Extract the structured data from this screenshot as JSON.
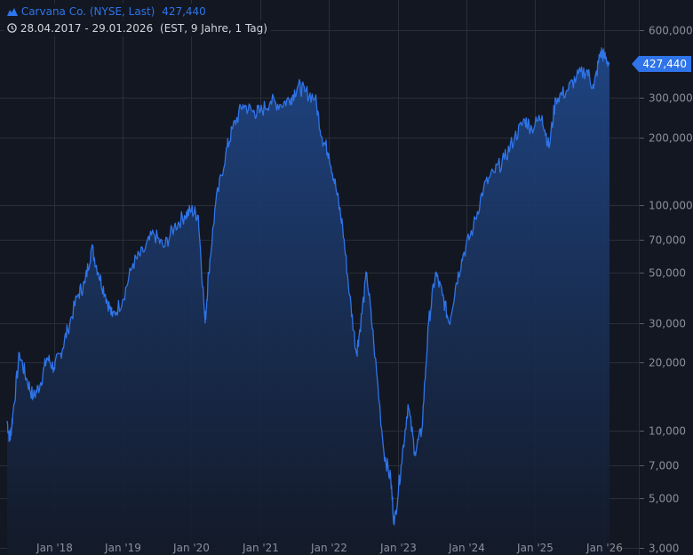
{
  "header": {
    "title": "Carvana Co. (NYSE, Last)",
    "last_value": "427,440",
    "date_range": "28.04.2017 - 29.01.2026",
    "range_info": "(EST, 9 Jahre, 1 Tag)"
  },
  "colors": {
    "line": "#2f74e8",
    "background": "#131722",
    "grid": "#2a2e39"
  },
  "chart_data": {
    "type": "area",
    "title": "Carvana Co. (NYSE, Last)",
    "xlabel": "",
    "ylabel": "",
    "yscale": "log",
    "ylim": [
      3000,
      600000
    ],
    "xlim": [
      2017.32,
      2026.08
    ],
    "grid": true,
    "y_ticks": [
      {
        "value": 600000,
        "label": "600,000"
      },
      {
        "value": 300000,
        "label": "300,000"
      },
      {
        "value": 200000,
        "label": "200,000"
      },
      {
        "value": 100000,
        "label": "100,000"
      },
      {
        "value": 70000,
        "label": "70,000"
      },
      {
        "value": 50000,
        "label": "50,000"
      },
      {
        "value": 30000,
        "label": "30,000"
      },
      {
        "value": 20000,
        "label": "20,000"
      },
      {
        "value": 10000,
        "label": "10,000"
      },
      {
        "value": 7000,
        "label": "7,000"
      },
      {
        "value": 5000,
        "label": "5,000"
      },
      {
        "value": 3000,
        "label": "3,000"
      }
    ],
    "x_ticks": [
      {
        "value": 2018.0,
        "label": "Jan '18"
      },
      {
        "value": 2019.0,
        "label": "Jan '19"
      },
      {
        "value": 2020.0,
        "label": "Jan '20"
      },
      {
        "value": 2021.0,
        "label": "Jan '21"
      },
      {
        "value": 2022.0,
        "label": "Jan '22"
      },
      {
        "value": 2023.0,
        "label": "Jan '23"
      },
      {
        "value": 2024.0,
        "label": "Jan '24"
      },
      {
        "value": 2025.0,
        "label": "Jan '25"
      },
      {
        "value": 2026.0,
        "label": "Jan '26"
      }
    ],
    "last_value": 427440,
    "series": [
      {
        "name": "Carvana Co.",
        "x": [
          2017.32,
          2017.36,
          2017.4,
          2017.5,
          2017.6,
          2017.7,
          2017.8,
          2017.9,
          2018.0,
          2018.1,
          2018.2,
          2018.35,
          2018.45,
          2018.55,
          2018.65,
          2018.75,
          2018.85,
          2019.0,
          2019.15,
          2019.3,
          2019.45,
          2019.6,
          2019.75,
          2019.9,
          2020.0,
          2020.1,
          2020.2,
          2020.25,
          2020.35,
          2020.5,
          2020.6,
          2020.75,
          2020.9,
          2021.0,
          2021.15,
          2021.3,
          2021.45,
          2021.55,
          2021.65,
          2021.8,
          2021.9,
          2022.0,
          2022.1,
          2022.2,
          2022.3,
          2022.4,
          2022.45,
          2022.55,
          2022.65,
          2022.8,
          2022.9,
          2022.95,
          2023.05,
          2023.15,
          2023.25,
          2023.35,
          2023.45,
          2023.55,
          2023.65,
          2023.75,
          2023.85,
          2023.95,
          2024.1,
          2024.25,
          2024.4,
          2024.55,
          2024.7,
          2024.85,
          2024.95,
          2025.1,
          2025.2,
          2025.3,
          2025.45,
          2025.6,
          2025.75,
          2025.85,
          2025.95,
          2026.0,
          2026.08
        ],
        "values": [
          11000,
          9000,
          11500,
          22000,
          17000,
          14000,
          16000,
          21000,
          19000,
          22000,
          28000,
          40000,
          45000,
          65000,
          50000,
          40000,
          32000,
          38000,
          55000,
          62000,
          75000,
          65000,
          80000,
          90000,
          95000,
          90000,
          30000,
          50000,
          100000,
          170000,
          220000,
          280000,
          260000,
          260000,
          290000,
          280000,
          300000,
          340000,
          320000,
          300000,
          200000,
          170000,
          120000,
          80000,
          40000,
          22000,
          28000,
          50000,
          25000,
          8000,
          6000,
          3800,
          7000,
          13000,
          8000,
          10000,
          30000,
          50000,
          40000,
          30000,
          45000,
          60000,
          80000,
          120000,
          140000,
          160000,
          200000,
          240000,
          220000,
          250000,
          180000,
          300000,
          320000,
          370000,
          400000,
          330000,
          480000,
          460000,
          427440
        ]
      }
    ]
  }
}
